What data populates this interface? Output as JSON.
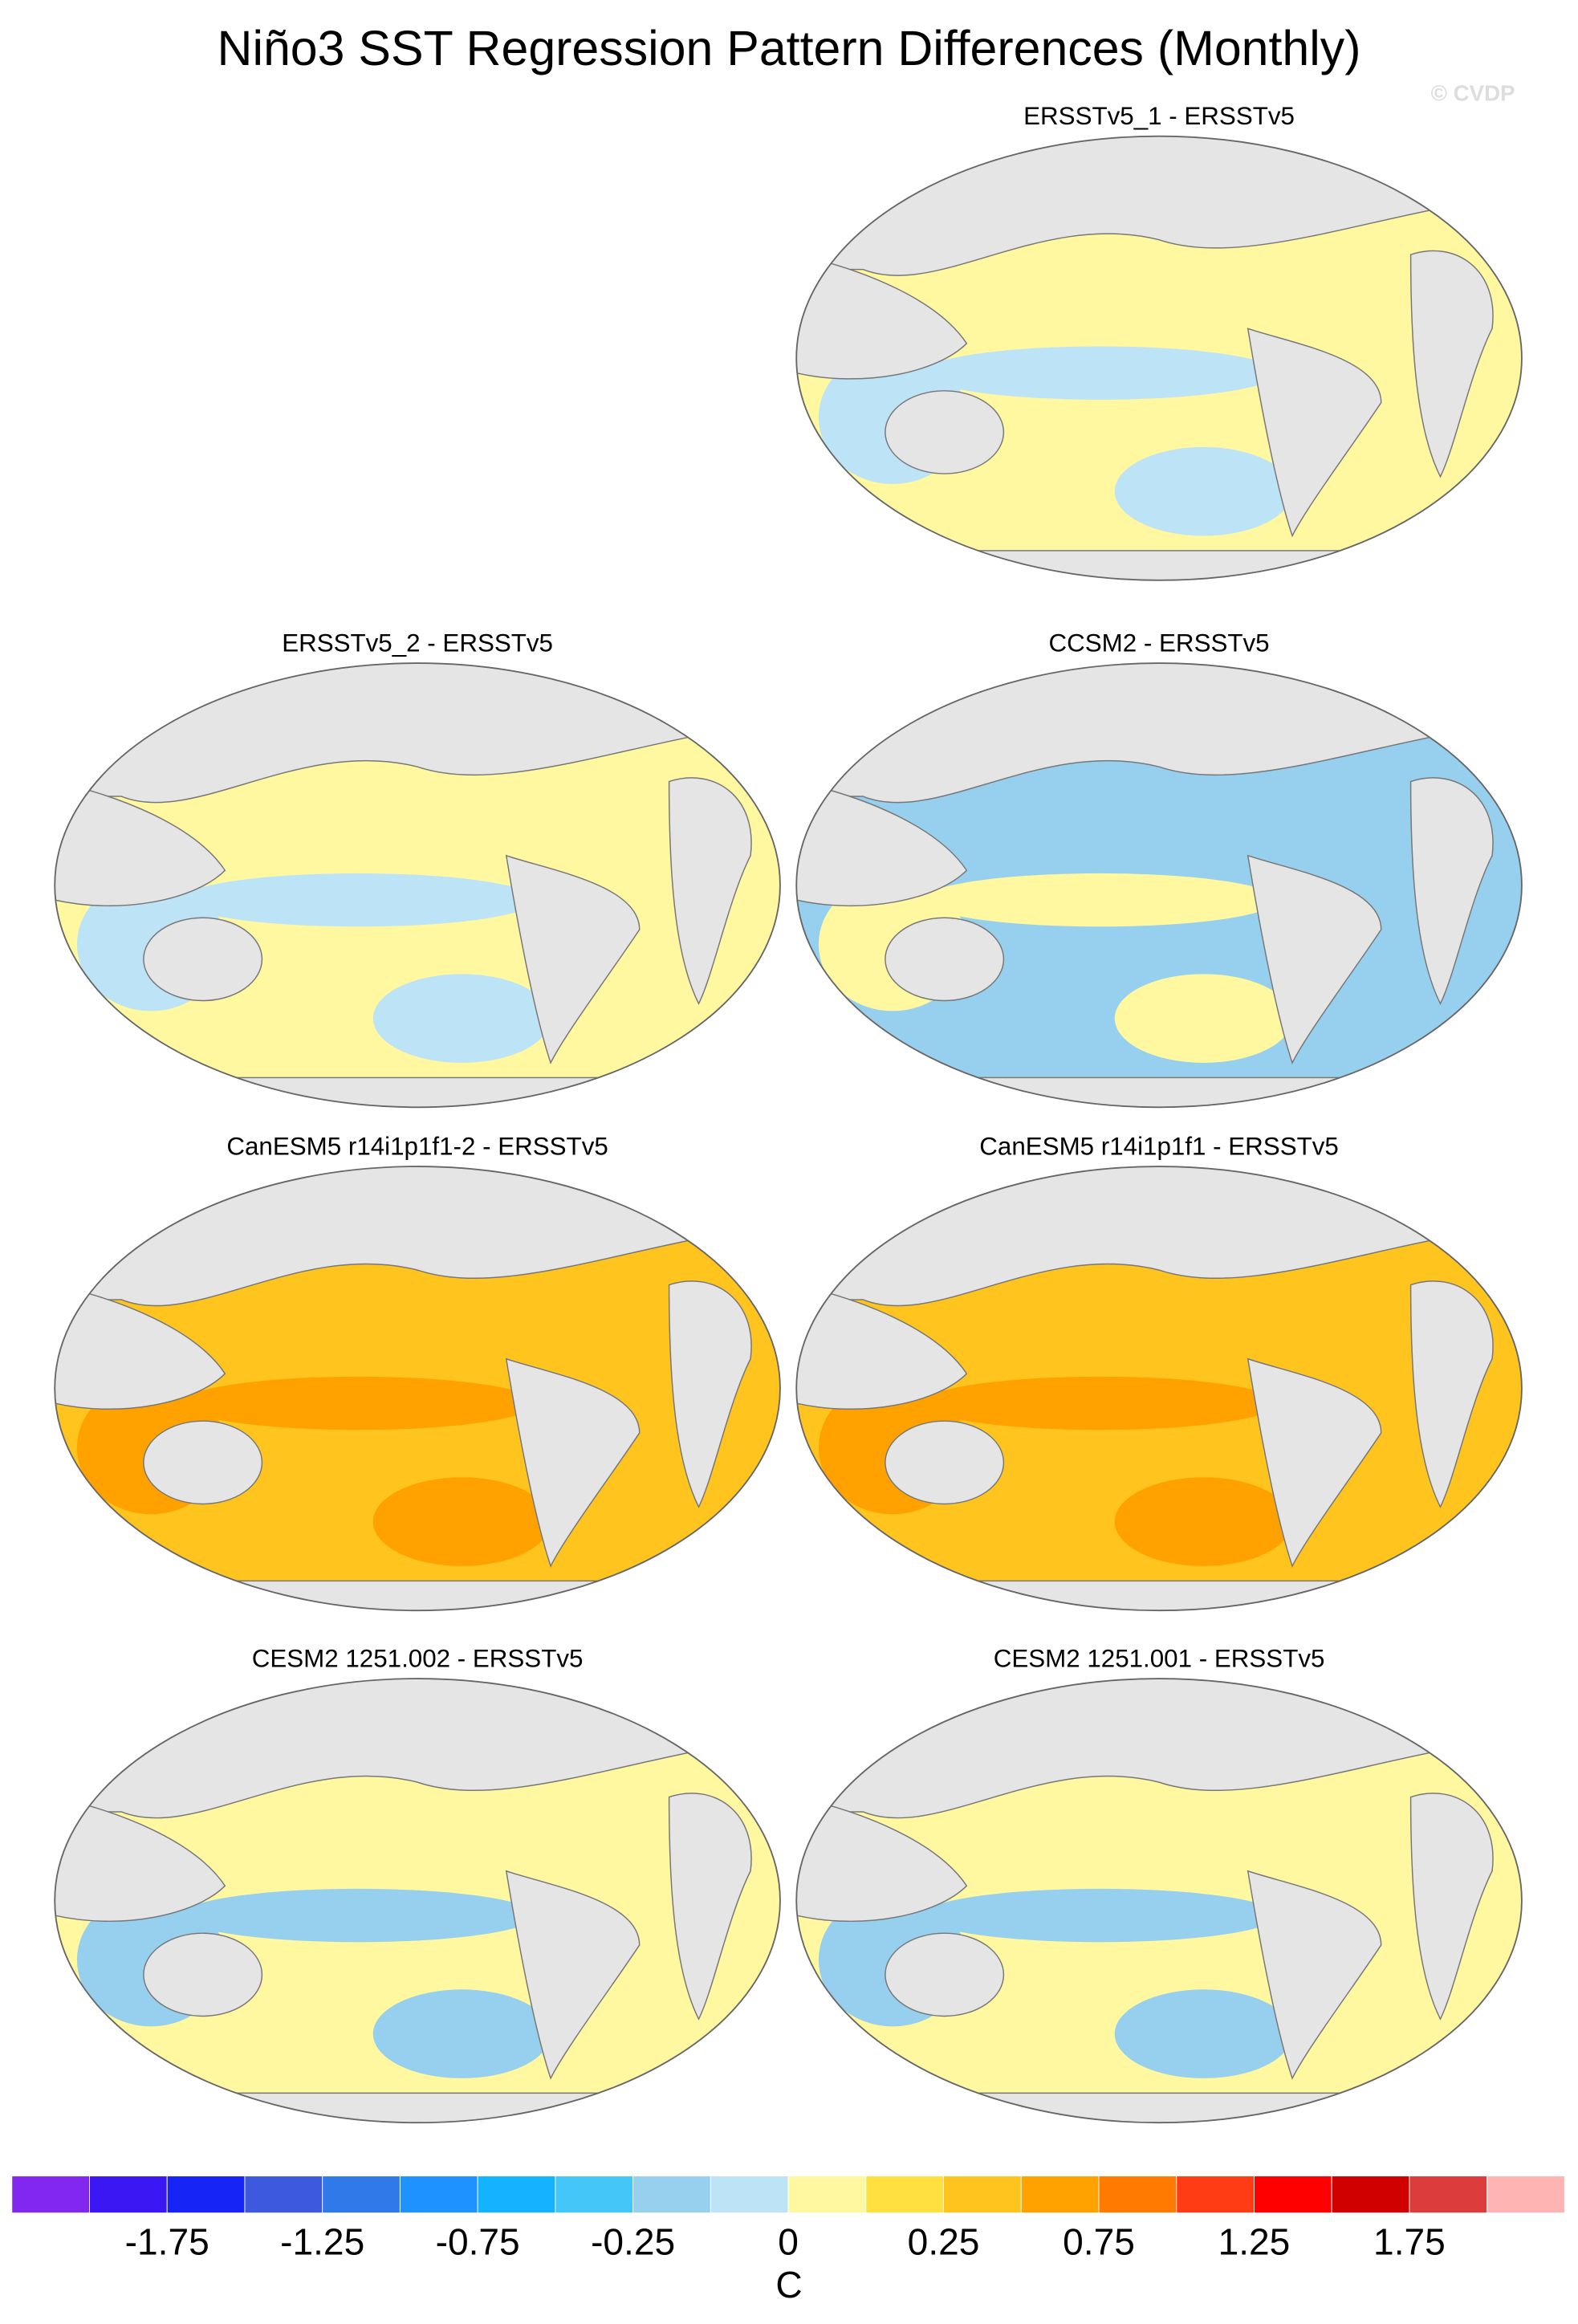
{
  "title": "Niño3 SST Regression Pattern Differences (Monthly)",
  "watermark": "© CVDP",
  "panels": [
    {
      "title": "ERSSTv5_1 - ERSSTv5"
    },
    {
      "title": "ERSSTv5_2 - ERSSTv5"
    },
    {
      "title": "CCSM2 - ERSSTv5"
    },
    {
      "title": "CanESM5 r14i1p1f1-2 - ERSSTv5"
    },
    {
      "title": "CanESM5 r14i1p1f1 - ERSSTv5"
    },
    {
      "title": "CESM2 1251.002 - ERSSTv5"
    },
    {
      "title": "CESM2 1251.001 - ERSSTv5"
    }
  ],
  "colorbar": {
    "colors": [
      "#8127f0",
      "#3b17f3",
      "#1624f5",
      "#3d5ade",
      "#2f7ae8",
      "#1e92ff",
      "#13b3ff",
      "#45c6f8",
      "#96d0ee",
      "#bde3f6",
      "#fff8a0",
      "#ffe03e",
      "#ffc41e",
      "#ffa200",
      "#ff7a00",
      "#ff3c14",
      "#ff0000",
      "#d00000",
      "#dc3c3c",
      "#ffb4b4"
    ],
    "labels": [
      "-1.75",
      "-1.25",
      "-0.75",
      "-0.25",
      "0",
      "0.25",
      "0.75",
      "1.25",
      "1.75"
    ],
    "unit": "C"
  }
}
